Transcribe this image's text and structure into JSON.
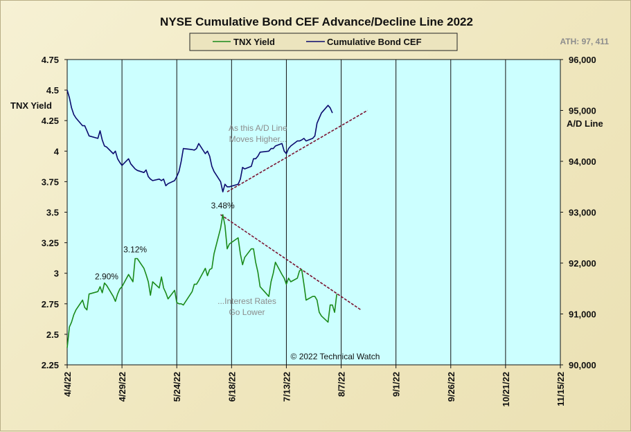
{
  "chart_data": {
    "type": "line",
    "title": "NYSE Cumulative  Bond CEF Advance/Decline  Line 2022",
    "ath_label": "ATH: 97, 411",
    "copyright": "© 2022 Technical  Watch",
    "left_axis": {
      "label": "TNX Yield",
      "ticks": [
        "4.75",
        "4.5",
        "4.25",
        "4",
        "3.75",
        "3.5",
        "3.25",
        "3",
        "2.75",
        "2.5",
        "2.25"
      ],
      "min": 2.25,
      "max": 4.75
    },
    "right_axis": {
      "label": "A/D Line",
      "ticks": [
        "96,000",
        "95,000",
        "94,000",
        "93,000",
        "92,000",
        "91,000",
        "90,000"
      ],
      "min": 90000,
      "max": 96000
    },
    "x_axis": {
      "type": "date",
      "start": "2022-04-04",
      "end": "2022-11-15",
      "ticks": [
        {
          "date": "2022-04-04",
          "label": "4/4/22"
        },
        {
          "date": "2022-04-29",
          "label": "4/29/22"
        },
        {
          "date": "2022-05-24",
          "label": "5/24/22"
        },
        {
          "date": "2022-06-18",
          "label": "6/18/22"
        },
        {
          "date": "2022-07-13",
          "label": "7/13/22"
        },
        {
          "date": "2022-08-07",
          "label": "8/7/22"
        },
        {
          "date": "2022-09-01",
          "label": "9/1/22"
        },
        {
          "date": "2022-09-26",
          "label": "9/26/22"
        },
        {
          "date": "2022-10-21",
          "label": "10/21/22"
        },
        {
          "date": "2022-11-15",
          "label": "11/15/22"
        }
      ]
    },
    "grid": "vertical only",
    "legend": {
      "position": "top-center",
      "items": [
        {
          "name": "TNX Yield",
          "color": "#1a8a1a"
        },
        {
          "name": "Cumulative Bond CEF",
          "color": "#0a0a6e"
        }
      ]
    },
    "series": [
      {
        "name": "TNX Yield",
        "axis": "left",
        "color": "#1a8a1a",
        "points": [
          [
            "2022-04-04",
            2.39
          ],
          [
            "2022-04-05",
            2.56
          ],
          [
            "2022-04-06",
            2.6
          ],
          [
            "2022-04-07",
            2.66
          ],
          [
            "2022-04-08",
            2.7
          ],
          [
            "2022-04-11",
            2.78
          ],
          [
            "2022-04-12",
            2.72
          ],
          [
            "2022-04-13",
            2.7
          ],
          [
            "2022-04-14",
            2.83
          ],
          [
            "2022-04-18",
            2.85
          ],
          [
            "2022-04-19",
            2.89
          ],
          [
            "2022-04-20",
            2.84
          ],
          [
            "2022-04-21",
            2.92
          ],
          [
            "2022-04-22",
            2.9
          ],
          [
            "2022-04-25",
            2.81
          ],
          [
            "2022-04-26",
            2.77
          ],
          [
            "2022-04-27",
            2.83
          ],
          [
            "2022-04-28",
            2.87
          ],
          [
            "2022-04-29",
            2.89
          ],
          [
            "2022-05-02",
            2.99
          ],
          [
            "2022-05-03",
            2.96
          ],
          [
            "2022-05-04",
            2.93
          ],
          [
            "2022-05-05",
            3.12
          ],
          [
            "2022-05-06",
            3.12
          ],
          [
            "2022-05-09",
            3.04
          ],
          [
            "2022-05-10",
            2.99
          ],
          [
            "2022-05-11",
            2.93
          ],
          [
            "2022-05-12",
            2.82
          ],
          [
            "2022-05-13",
            2.93
          ],
          [
            "2022-05-16",
            2.88
          ],
          [
            "2022-05-17",
            2.97
          ],
          [
            "2022-05-18",
            2.88
          ],
          [
            "2022-05-19",
            2.84
          ],
          [
            "2022-05-20",
            2.79
          ],
          [
            "2022-05-23",
            2.86
          ],
          [
            "2022-05-24",
            2.76
          ],
          [
            "2022-05-25",
            2.75
          ],
          [
            "2022-05-26",
            2.75
          ],
          [
            "2022-05-27",
            2.74
          ],
          [
            "2022-05-31",
            2.85
          ],
          [
            "2022-06-01",
            2.91
          ],
          [
            "2022-06-02",
            2.91
          ],
          [
            "2022-06-03",
            2.94
          ],
          [
            "2022-06-06",
            3.04
          ],
          [
            "2022-06-07",
            2.98
          ],
          [
            "2022-06-08",
            3.03
          ],
          [
            "2022-06-09",
            3.04
          ],
          [
            "2022-06-10",
            3.16
          ],
          [
            "2022-06-13",
            3.37
          ],
          [
            "2022-06-14",
            3.48
          ],
          [
            "2022-06-15",
            3.39
          ],
          [
            "2022-06-16",
            3.2
          ],
          [
            "2022-06-17",
            3.24
          ],
          [
            "2022-06-21",
            3.29
          ],
          [
            "2022-06-22",
            3.16
          ],
          [
            "2022-06-23",
            3.07
          ],
          [
            "2022-06-24",
            3.13
          ],
          [
            "2022-06-27",
            3.2
          ],
          [
            "2022-06-28",
            3.2
          ],
          [
            "2022-06-29",
            3.09
          ],
          [
            "2022-06-30",
            3.01
          ],
          [
            "2022-07-01",
            2.89
          ],
          [
            "2022-07-05",
            2.81
          ],
          [
            "2022-07-06",
            2.93
          ],
          [
            "2022-07-07",
            3.0
          ],
          [
            "2022-07-08",
            3.09
          ],
          [
            "2022-07-11",
            2.99
          ],
          [
            "2022-07-12",
            2.96
          ],
          [
            "2022-07-13",
            2.91
          ],
          [
            "2022-07-14",
            2.96
          ],
          [
            "2022-07-15",
            2.93
          ],
          [
            "2022-07-18",
            2.96
          ],
          [
            "2022-07-19",
            3.02
          ],
          [
            "2022-07-20",
            3.03
          ],
          [
            "2022-07-21",
            2.91
          ],
          [
            "2022-07-22",
            2.78
          ],
          [
            "2022-07-25",
            2.81
          ],
          [
            "2022-07-26",
            2.81
          ],
          [
            "2022-07-27",
            2.78
          ],
          [
            "2022-07-28",
            2.68
          ],
          [
            "2022-07-29",
            2.65
          ],
          [
            "2022-08-01",
            2.6
          ],
          [
            "2022-08-02",
            2.74
          ],
          [
            "2022-08-03",
            2.74
          ],
          [
            "2022-08-04",
            2.68
          ],
          [
            "2022-08-05",
            2.83
          ]
        ]
      },
      {
        "name": "Cumulative Bond CEF",
        "axis": "right",
        "color": "#0a0a6e",
        "points": [
          [
            "2022-04-04",
            95400
          ],
          [
            "2022-04-05",
            95250
          ],
          [
            "2022-04-06",
            95050
          ],
          [
            "2022-04-07",
            94920
          ],
          [
            "2022-04-08",
            94850
          ],
          [
            "2022-04-11",
            94700
          ],
          [
            "2022-04-12",
            94700
          ],
          [
            "2022-04-13",
            94600
          ],
          [
            "2022-04-14",
            94500
          ],
          [
            "2022-04-18",
            94450
          ],
          [
            "2022-04-19",
            94600
          ],
          [
            "2022-04-20",
            94420
          ],
          [
            "2022-04-21",
            94300
          ],
          [
            "2022-04-22",
            94280
          ],
          [
            "2022-04-25",
            94150
          ],
          [
            "2022-04-26",
            94200
          ],
          [
            "2022-04-27",
            94050
          ],
          [
            "2022-04-28",
            93980
          ],
          [
            "2022-04-29",
            93920
          ],
          [
            "2022-05-02",
            94050
          ],
          [
            "2022-05-03",
            93950
          ],
          [
            "2022-05-04",
            93900
          ],
          [
            "2022-05-05",
            93850
          ],
          [
            "2022-05-06",
            93820
          ],
          [
            "2022-05-09",
            93780
          ],
          [
            "2022-05-10",
            93830
          ],
          [
            "2022-05-11",
            93700
          ],
          [
            "2022-05-12",
            93650
          ],
          [
            "2022-05-13",
            93620
          ],
          [
            "2022-05-16",
            93650
          ],
          [
            "2022-05-17",
            93620
          ],
          [
            "2022-05-18",
            93650
          ],
          [
            "2022-05-19",
            93520
          ],
          [
            "2022-05-20",
            93560
          ],
          [
            "2022-05-23",
            93620
          ],
          [
            "2022-05-24",
            93700
          ],
          [
            "2022-05-25",
            93800
          ],
          [
            "2022-05-26",
            94000
          ],
          [
            "2022-05-27",
            94250
          ],
          [
            "2022-05-31",
            94230
          ],
          [
            "2022-06-01",
            94220
          ],
          [
            "2022-06-02",
            94250
          ],
          [
            "2022-06-03",
            94350
          ],
          [
            "2022-06-06",
            94150
          ],
          [
            "2022-06-07",
            94200
          ],
          [
            "2022-06-08",
            94100
          ],
          [
            "2022-06-09",
            93900
          ],
          [
            "2022-06-10",
            93800
          ],
          [
            "2022-06-13",
            93600
          ],
          [
            "2022-06-14",
            93400
          ],
          [
            "2022-06-15",
            93550
          ],
          [
            "2022-06-16",
            93500
          ],
          [
            "2022-06-17",
            93500
          ],
          [
            "2022-06-21",
            93550
          ],
          [
            "2022-06-22",
            93650
          ],
          [
            "2022-06-23",
            93880
          ],
          [
            "2022-06-24",
            93850
          ],
          [
            "2022-06-27",
            93900
          ],
          [
            "2022-06-28",
            94050
          ],
          [
            "2022-06-29",
            94050
          ],
          [
            "2022-06-30",
            94100
          ],
          [
            "2022-07-01",
            94180
          ],
          [
            "2022-07-05",
            94200
          ],
          [
            "2022-07-06",
            94250
          ],
          [
            "2022-07-07",
            94250
          ],
          [
            "2022-07-08",
            94300
          ],
          [
            "2022-07-11",
            94350
          ],
          [
            "2022-07-12",
            94200
          ],
          [
            "2022-07-13",
            94150
          ],
          [
            "2022-07-14",
            94250
          ],
          [
            "2022-07-15",
            94300
          ],
          [
            "2022-07-18",
            94400
          ],
          [
            "2022-07-19",
            94400
          ],
          [
            "2022-07-20",
            94420
          ],
          [
            "2022-07-21",
            94450
          ],
          [
            "2022-07-22",
            94400
          ],
          [
            "2022-07-25",
            94450
          ],
          [
            "2022-07-26",
            94500
          ],
          [
            "2022-07-27",
            94750
          ],
          [
            "2022-07-28",
            94850
          ],
          [
            "2022-07-29",
            94950
          ],
          [
            "2022-08-01",
            95100
          ],
          [
            "2022-08-02",
            95050
          ],
          [
            "2022-08-03",
            94950
          ]
        ]
      }
    ],
    "annotations": [
      {
        "text": "3.48%",
        "axis": "left",
        "date": "2022-06-14",
        "value": 3.48
      },
      {
        "text": "3.12%",
        "axis": "left",
        "date": "2022-05-05",
        "value": 3.12
      },
      {
        "text": "2.90%",
        "axis": "left",
        "date": "2022-04-22",
        "value": 2.9
      },
      {
        "lines": [
          "As this A/D Line",
          "Moves Higher..."
        ],
        "axis": "right",
        "date": "2022-06-30",
        "value": 94600
      },
      {
        "lines": [
          "...Interest Rates",
          "Go Lower"
        ],
        "axis": "left",
        "date": "2022-06-25",
        "value": 2.75
      }
    ],
    "trendlines": [
      {
        "axis": "right",
        "color": "#7a1230",
        "from": [
          "2022-06-16",
          93400
        ],
        "to": [
          "2022-08-19",
          95000
        ]
      },
      {
        "axis": "left",
        "color": "#7a1230",
        "from": [
          "2022-06-13",
          3.48
        ],
        "to": [
          "2022-08-16",
          2.7
        ]
      }
    ]
  }
}
